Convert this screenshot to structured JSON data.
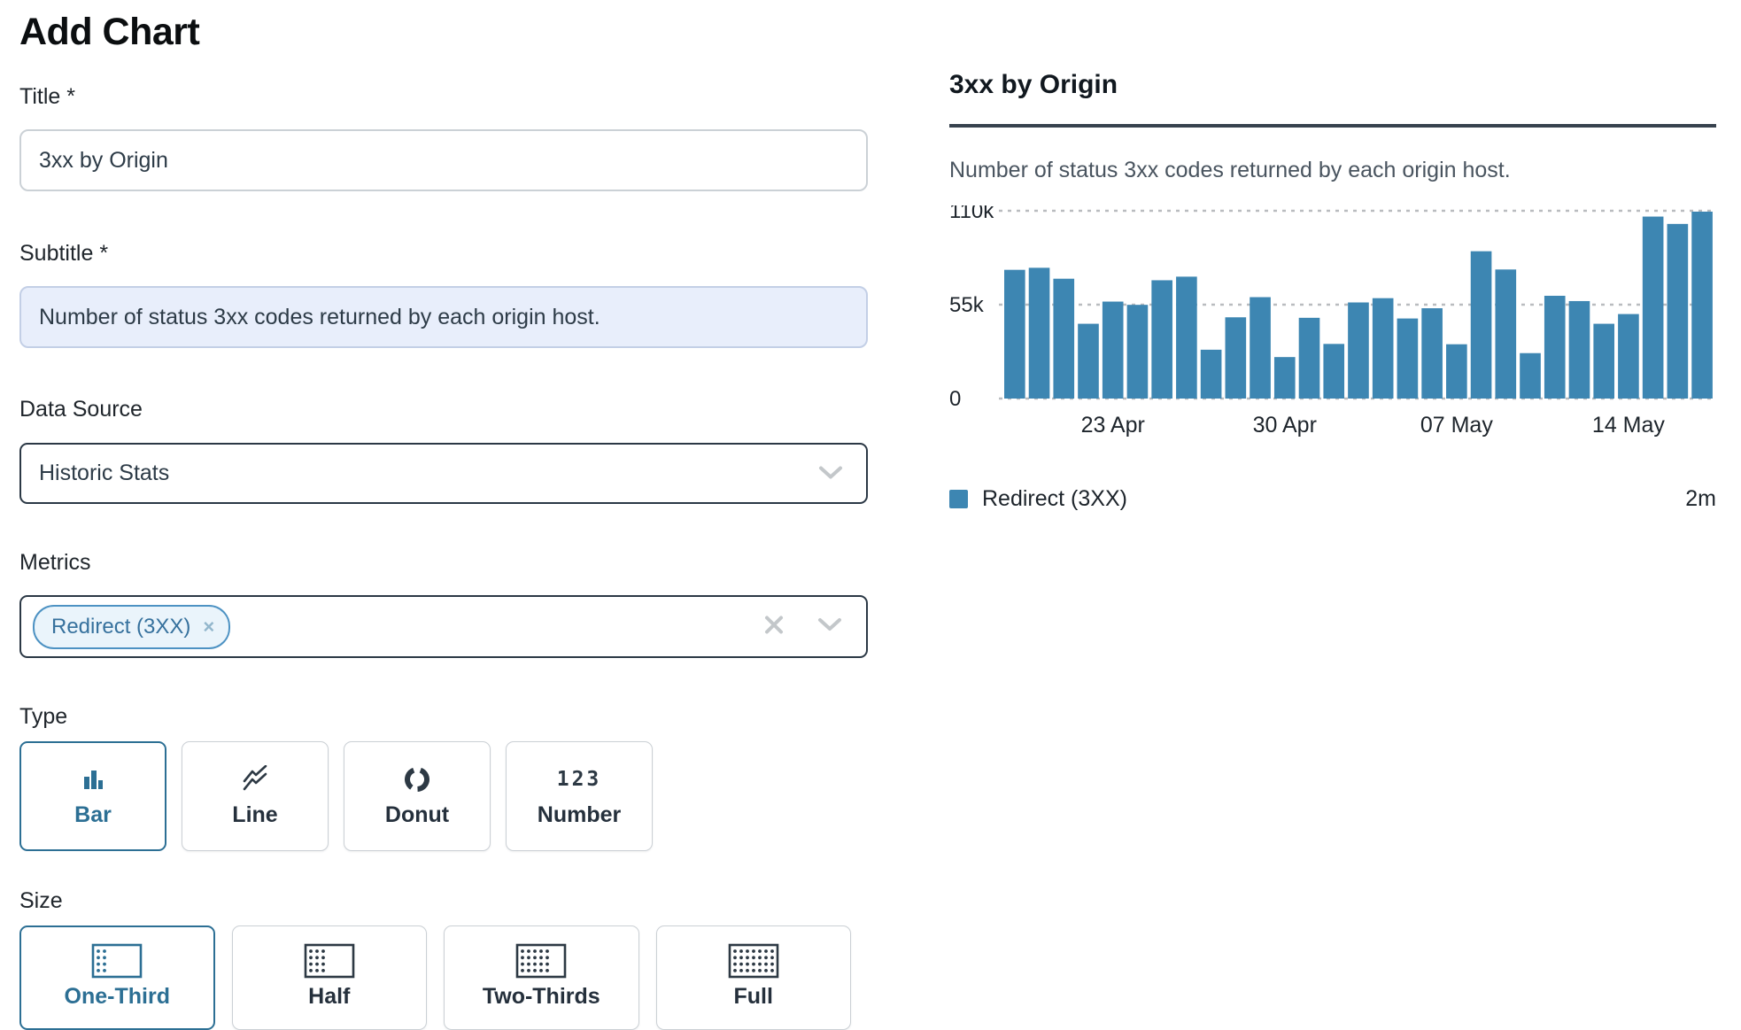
{
  "page_title": "Add Chart",
  "form": {
    "title": {
      "label": "Title *",
      "value": "3xx by Origin"
    },
    "subtitle": {
      "label": "Subtitle *",
      "value": "Number of status 3xx codes returned by each origin host."
    },
    "data_source": {
      "label": "Data Source",
      "value": "Historic Stats"
    },
    "metrics": {
      "label": "Metrics",
      "tags": [
        {
          "label": "Redirect (3XX)",
          "remove_glyph": "×"
        }
      ]
    },
    "type": {
      "label": "Type",
      "number_icon_text": "123",
      "options": [
        {
          "label": "Bar",
          "icon": "bar-chart-icon",
          "selected": true
        },
        {
          "label": "Line",
          "icon": "line-chart-icon",
          "selected": false
        },
        {
          "label": "Donut",
          "icon": "donut-chart-icon",
          "selected": false
        },
        {
          "label": "Number",
          "icon": "number-icon",
          "selected": false
        }
      ]
    },
    "size": {
      "label": "Size",
      "options": [
        {
          "label": "One-Third",
          "icon": "one-third-grid-icon",
          "selected": true
        },
        {
          "label": "Half",
          "icon": "half-grid-icon",
          "selected": false
        },
        {
          "label": "Two-Thirds",
          "icon": "two-thirds-grid-icon",
          "selected": false
        },
        {
          "label": "Full",
          "icon": "full-grid-icon",
          "selected": false
        }
      ]
    }
  },
  "preview": {
    "title": "3xx by Origin",
    "subtitle": "Number of status 3xx codes returned by each origin host.",
    "legend": {
      "swatch_color": "#3d86b2",
      "label": "Redirect (3XX)",
      "total": "2m"
    }
  },
  "chart_data": {
    "type": "bar",
    "title": "3xx by Origin",
    "subtitle": "Number of status 3xx codes returned by each origin host.",
    "series": [
      {
        "name": "Redirect (3XX)",
        "values": [
          75400,
          76600,
          70200,
          43800,
          56800,
          54900,
          69300,
          71400,
          28600,
          47600,
          59400,
          24300,
          47300,
          32000,
          56300,
          58800,
          46900,
          52900,
          31800,
          86300,
          75600,
          26600,
          60200,
          57100,
          43800,
          49500,
          106600,
          102300,
          109500
        ]
      }
    ],
    "ylim": [
      0,
      110000
    ],
    "yticks": [
      {
        "label": "0",
        "value": 0
      },
      {
        "label": "55k",
        "value": 55000
      },
      {
        "label": "110k",
        "value": 110000
      }
    ],
    "xticks": [
      {
        "label": "23 Apr",
        "bar_index": 4
      },
      {
        "label": "30 Apr",
        "bar_index": 11
      },
      {
        "label": "07 May",
        "bar_index": 18
      },
      {
        "label": "14 May",
        "bar_index": 25
      }
    ],
    "bar_color": "#3d86b2",
    "gridline_color": "#b9bcbf",
    "grid": "horizontal-dashed",
    "legend_position": "bottom",
    "legend_total": "2m"
  },
  "colors": {
    "accent_blue": "#2c6f94",
    "bar_blue": "#3d86b2",
    "dark_border": "#2b3845",
    "light_border": "#cbd1d6",
    "autofill_bg": "#e8eefb",
    "rule_dark": "#37424e",
    "muted_icon": "#c3c7ca"
  }
}
